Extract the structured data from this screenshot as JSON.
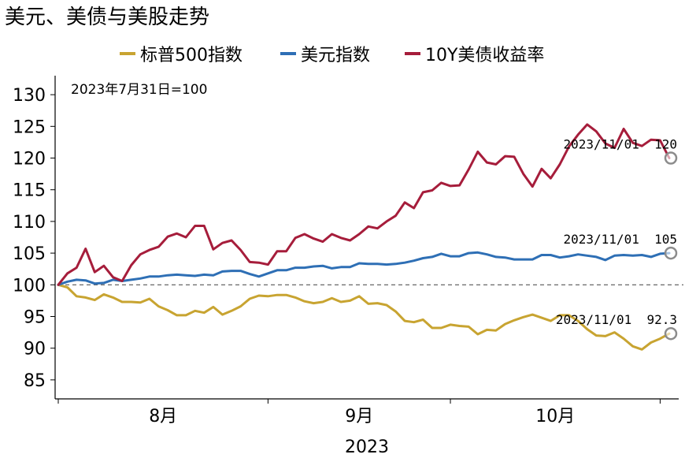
{
  "chart_data": {
    "type": "line",
    "title": "美元、美债与美股走势",
    "note": "2023年7月31日=100",
    "xlabel": "2023",
    "x_ticks": [
      "8月",
      "9月",
      "10月"
    ],
    "ylim": [
      82,
      133
    ],
    "y_ticks": [
      85,
      90,
      95,
      100,
      105,
      110,
      115,
      120,
      125,
      130
    ],
    "reference_line": 100,
    "grid": false,
    "legend": "top",
    "series": [
      {
        "name": "标普500指数",
        "color": "#C8A431",
        "values": [
          100,
          99.6,
          98.2,
          98.0,
          97.6,
          98.5,
          98.0,
          97.3,
          97.3,
          97.2,
          97.8,
          96.6,
          96.0,
          95.2,
          95.2,
          95.9,
          95.6,
          96.5,
          95.3,
          95.9,
          96.6,
          97.8,
          98.3,
          98.2,
          98.4,
          98.4,
          98.0,
          97.4,
          97.1,
          97.3,
          97.9,
          97.3,
          97.5,
          98.2,
          97.0,
          97.1,
          96.8,
          95.8,
          94.3,
          94.1,
          94.5,
          93.2,
          93.2,
          93.7,
          93.5,
          93.4,
          92.2,
          92.9,
          92.8,
          93.8,
          94.4,
          94.9,
          95.3,
          94.8,
          94.3,
          95.2,
          95.2,
          94.3,
          93.0,
          92.0,
          91.9,
          92.5,
          91.5,
          90.3,
          89.8,
          90.9,
          91.5,
          92.3
        ],
        "end_label": "2023/11/01  92.3"
      },
      {
        "name": "美元指数",
        "color": "#2E6FB5",
        "values": [
          100,
          100.5,
          100.8,
          100.7,
          100.2,
          100.3,
          100.8,
          100.6,
          100.8,
          101.0,
          101.3,
          101.3,
          101.5,
          101.6,
          101.5,
          101.4,
          101.6,
          101.5,
          102.1,
          102.2,
          102.2,
          101.7,
          101.3,
          101.8,
          102.3,
          102.3,
          102.7,
          102.7,
          102.9,
          103.0,
          102.6,
          102.8,
          102.8,
          103.4,
          103.3,
          103.3,
          103.2,
          103.3,
          103.5,
          103.8,
          104.2,
          104.4,
          104.9,
          104.5,
          104.5,
          105.0,
          105.1,
          104.8,
          104.4,
          104.3,
          104.0,
          104.0,
          104.0,
          104.7,
          104.7,
          104.3,
          104.5,
          104.8,
          104.6,
          104.4,
          103.9,
          104.6,
          104.7,
          104.6,
          104.7,
          104.4,
          104.9,
          105.0
        ],
        "end_label": "2023/11/01  105"
      },
      {
        "name": "10Y美债收益率",
        "color": "#A61D3B",
        "values": [
          100,
          101.8,
          102.7,
          105.7,
          102.0,
          103.0,
          101.2,
          100.6,
          103.1,
          104.8,
          105.5,
          106.0,
          107.6,
          108.1,
          107.5,
          109.3,
          109.3,
          105.6,
          106.6,
          107.0,
          105.5,
          103.6,
          103.5,
          103.2,
          105.3,
          105.3,
          107.4,
          108.0,
          107.3,
          106.8,
          108.0,
          107.4,
          107.0,
          108.0,
          109.2,
          108.9,
          110.0,
          110.9,
          113.0,
          112.1,
          114.6,
          114.9,
          116.1,
          115.6,
          115.7,
          118.2,
          121.0,
          119.3,
          119.0,
          120.3,
          120.2,
          117.5,
          115.5,
          118.3,
          116.8,
          119.0,
          121.8,
          123.7,
          125.3,
          124.2,
          122.3,
          121.6,
          124.6,
          122.4,
          121.9,
          122.9,
          122.8,
          120.0
        ],
        "end_label": "2023/11/01  120"
      }
    ]
  }
}
